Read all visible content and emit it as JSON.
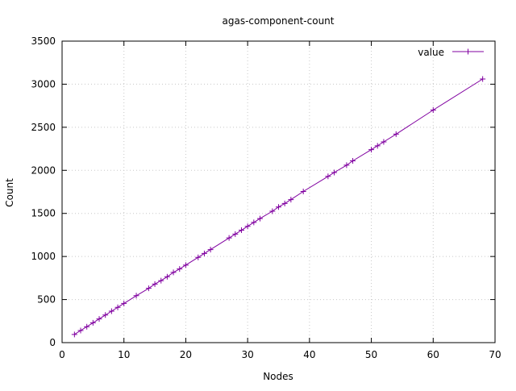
{
  "chart_data": {
    "type": "line",
    "title": "agas-component-count",
    "xlabel": "Nodes",
    "ylabel": "Count",
    "xlim": [
      0,
      70
    ],
    "ylim": [
      0,
      3500
    ],
    "xticks": [
      0,
      10,
      20,
      30,
      40,
      50,
      60,
      70
    ],
    "yticks": [
      0,
      500,
      1000,
      1500,
      2000,
      2500,
      3000,
      3500
    ],
    "grid": true,
    "legend_position": "top-right",
    "series": [
      {
        "name": "value",
        "color": "#8000a0",
        "marker": "plus",
        "x": [
          2,
          3,
          4,
          5,
          6,
          7,
          8,
          9,
          10,
          12,
          14,
          15,
          16,
          17,
          18,
          19,
          20,
          22,
          23,
          24,
          27,
          28,
          29,
          30,
          31,
          32,
          34,
          35,
          36,
          37,
          39,
          43,
          44,
          46,
          47,
          50,
          51,
          52,
          54,
          60,
          68
        ],
        "y": [
          95,
          140,
          185,
          230,
          275,
          320,
          365,
          410,
          455,
          545,
          630,
          680,
          720,
          765,
          815,
          855,
          900,
          990,
          1035,
          1080,
          1215,
          1260,
          1305,
          1350,
          1395,
          1440,
          1525,
          1575,
          1615,
          1660,
          1755,
          1930,
          1975,
          2060,
          2110,
          2240,
          2285,
          2330,
          2420,
          2700,
          3060
        ]
      }
    ]
  }
}
